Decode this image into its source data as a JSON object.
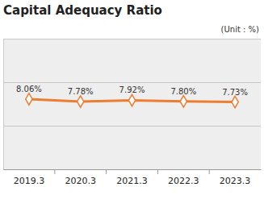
{
  "chart_data": {
    "type": "line",
    "title": "Capital Adequacy Ratio",
    "subtitle": "(Unit : %)",
    "categories": [
      "2019.3",
      "2020.3",
      "2021.3",
      "2022.3",
      "2023.3"
    ],
    "values": [
      8.06,
      7.78,
      7.92,
      7.8,
      7.73
    ],
    "value_labels": [
      "8.06%",
      "7.78%",
      "7.92%",
      "7.80%",
      "7.73%"
    ],
    "color": "#ed7d31",
    "marker": "diamond",
    "line_style": "solid",
    "ylim": [
      0,
      15
    ],
    "yticks": [
      0,
      5,
      10,
      15
    ],
    "grid": true,
    "data_labels": true,
    "tick_labels": "x"
  }
}
